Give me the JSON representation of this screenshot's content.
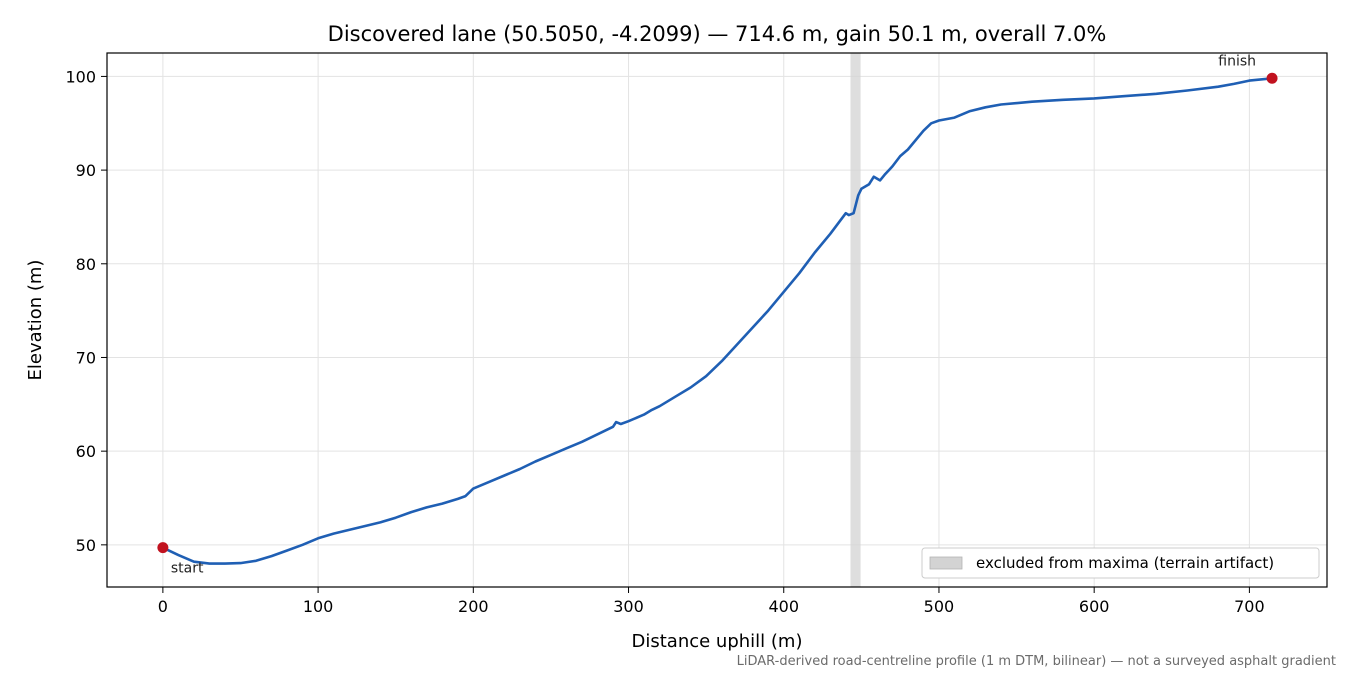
{
  "chart_data": {
    "type": "line",
    "title": "Discovered lane (50.5050, -4.2099) — 714.6 m, gain 50.1 m, overall 7.0%",
    "xlabel": "Distance uphill (m)",
    "ylabel": "Elevation (m)",
    "xlim": [
      -36,
      750
    ],
    "ylim": [
      45.5,
      102.5
    ],
    "xticks": [
      0,
      100,
      200,
      300,
      400,
      500,
      600,
      700
    ],
    "yticks": [
      50,
      60,
      70,
      80,
      90,
      100
    ],
    "grid": true,
    "series": [
      {
        "name": "",
        "color": "#1f5fb4",
        "x": [
          0,
          10,
          20,
          30,
          40,
          50,
          60,
          70,
          80,
          90,
          100,
          110,
          120,
          130,
          140,
          150,
          160,
          170,
          180,
          190,
          195,
          200,
          210,
          220,
          230,
          240,
          250,
          260,
          270,
          280,
          290,
          292,
          295,
          300,
          310,
          315,
          320,
          330,
          340,
          350,
          360,
          370,
          380,
          390,
          400,
          410,
          420,
          430,
          440,
          442,
          445,
          448,
          450,
          455,
          458,
          462,
          465,
          470,
          475,
          480,
          490,
          495,
          500,
          510,
          520,
          530,
          540,
          560,
          580,
          600,
          620,
          640,
          660,
          680,
          690,
          700,
          714.6
        ],
        "y": [
          49.7,
          48.9,
          48.2,
          48.0,
          48.0,
          48.05,
          48.3,
          48.8,
          49.4,
          50.0,
          50.7,
          51.2,
          51.6,
          52.0,
          52.4,
          52.9,
          53.5,
          54.0,
          54.4,
          54.9,
          55.2,
          56.0,
          56.7,
          57.4,
          58.1,
          58.9,
          59.6,
          60.3,
          61.0,
          61.8,
          62.6,
          63.1,
          62.9,
          63.2,
          63.9,
          64.4,
          64.8,
          65.8,
          66.8,
          68.0,
          69.6,
          71.4,
          73.2,
          75.0,
          77.0,
          79.0,
          81.2,
          83.2,
          85.4,
          85.2,
          85.4,
          87.3,
          88.0,
          88.5,
          89.3,
          88.9,
          89.5,
          90.4,
          91.5,
          92.2,
          94.2,
          95.0,
          95.3,
          95.6,
          96.3,
          96.7,
          97.0,
          97.3,
          97.5,
          97.65,
          97.9,
          98.15,
          98.5,
          98.9,
          99.2,
          99.55,
          99.8
        ]
      }
    ],
    "markers": [
      {
        "x": 0,
        "y": 49.7,
        "label": "start",
        "color": "#c1121f"
      },
      {
        "x": 714.6,
        "y": 99.8,
        "label": "finish",
        "color": "#c1121f"
      }
    ],
    "excluded_region": {
      "x0": 443,
      "x1": 449.5,
      "label": "excluded from maxima (terrain artifact)",
      "color": "#d3d3d3"
    },
    "legend_position": "lower-right",
    "footnote": "LiDAR-derived road-centreline profile (1 m DTM, bilinear) — not a surveyed asphalt gradient"
  }
}
